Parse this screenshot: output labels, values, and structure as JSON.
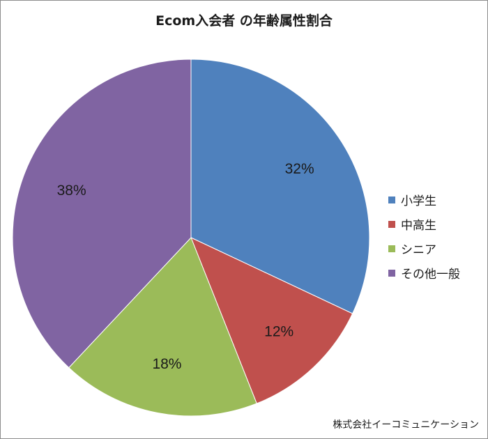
{
  "chart_data": {
    "type": "pie",
    "title": "Ecom入会者 の年齢属性割合",
    "categories": [
      "小学生",
      "中高生",
      "シニア",
      "その他一般"
    ],
    "values": [
      32,
      12,
      18,
      38
    ],
    "labels": [
      "32%",
      "12%",
      "18%",
      "38%"
    ],
    "colors": [
      "#4f81bd",
      "#c0504d",
      "#9bbb59",
      "#8064a2"
    ],
    "legend_position": "right",
    "start_angle": "12 o'clock, clockwise"
  },
  "credit": "株式会社イーコミュニケーション"
}
